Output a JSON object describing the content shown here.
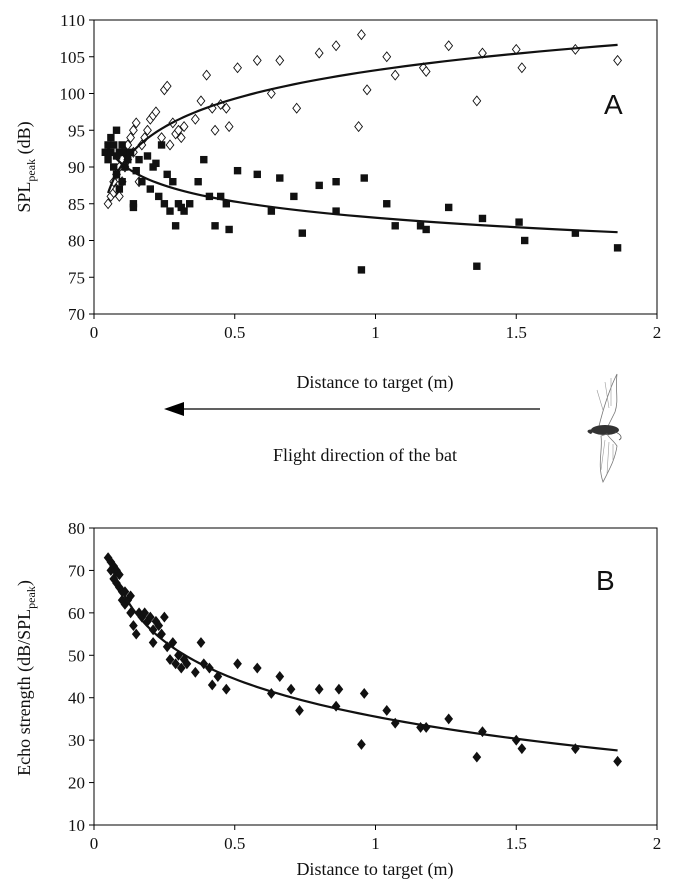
{
  "figure": {
    "flight_direction_label": "Flight direction of the bat",
    "flight_arrow_icon": "left-arrow-icon",
    "bat_icon": "bat-silhouette-icon"
  },
  "chart_data": [
    {
      "type": "scatter",
      "panel_label": "A",
      "xlabel": "Distance to target (m)",
      "ylabel_main": "SPL",
      "ylabel_sub": "peak",
      "ylabel_suffix": " (dB)",
      "xlim": [
        0,
        2
      ],
      "ylim": [
        70,
        110
      ],
      "xticks": [
        "0",
        "0.5",
        "1",
        "1.5",
        "2"
      ],
      "yticks": [
        "70",
        "75",
        "80",
        "85",
        "90",
        "95",
        "100",
        "105",
        "110"
      ],
      "grid": false,
      "series": [
        {
          "marker": "open-diamond",
          "points": [
            [
              0.05,
              85
            ],
            [
              0.06,
              86
            ],
            [
              0.07,
              86.5
            ],
            [
              0.07,
              88
            ],
            [
              0.08,
              87
            ],
            [
              0.08,
              89
            ],
            [
              0.09,
              86
            ],
            [
              0.09,
              90
            ],
            [
              0.1,
              88
            ],
            [
              0.1,
              91
            ],
            [
              0.11,
              90
            ],
            [
              0.11,
              92
            ],
            [
              0.12,
              91
            ],
            [
              0.12,
              93
            ],
            [
              0.13,
              94
            ],
            [
              0.14,
              92
            ],
            [
              0.14,
              95
            ],
            [
              0.15,
              96
            ],
            [
              0.16,
              88
            ],
            [
              0.17,
              93
            ],
            [
              0.18,
              94
            ],
            [
              0.19,
              95
            ],
            [
              0.2,
              96.5
            ],
            [
              0.21,
              97
            ],
            [
              0.22,
              97.5
            ],
            [
              0.24,
              94
            ],
            [
              0.25,
              100.5
            ],
            [
              0.26,
              101
            ],
            [
              0.27,
              93
            ],
            [
              0.28,
              96
            ],
            [
              0.29,
              94.5
            ],
            [
              0.3,
              95
            ],
            [
              0.31,
              94
            ],
            [
              0.32,
              95.5
            ],
            [
              0.36,
              96.5
            ],
            [
              0.38,
              99
            ],
            [
              0.4,
              102.5
            ],
            [
              0.42,
              98
            ],
            [
              0.43,
              95
            ],
            [
              0.45,
              98.5
            ],
            [
              0.47,
              98
            ],
            [
              0.48,
              95.5
            ],
            [
              0.51,
              103.5
            ],
            [
              0.58,
              104.5
            ],
            [
              0.63,
              100
            ],
            [
              0.66,
              104.5
            ],
            [
              0.72,
              98
            ],
            [
              0.8,
              105.5
            ],
            [
              0.86,
              106.5
            ],
            [
              0.94,
              95.5
            ],
            [
              0.95,
              108
            ],
            [
              0.97,
              100.5
            ],
            [
              1.04,
              105
            ],
            [
              1.07,
              102.5
            ],
            [
              1.17,
              103.5
            ],
            [
              1.18,
              103
            ],
            [
              1.26,
              106.5
            ],
            [
              1.36,
              99
            ],
            [
              1.38,
              105.5
            ],
            [
              1.5,
              106
            ],
            [
              1.52,
              103.5
            ],
            [
              1.71,
              106
            ],
            [
              1.86,
              104.5
            ]
          ]
        },
        {
          "marker": "filled-square",
          "points": [
            [
              0.04,
              92
            ],
            [
              0.05,
              93
            ],
            [
              0.05,
              91
            ],
            [
              0.06,
              94
            ],
            [
              0.06,
              92
            ],
            [
              0.07,
              90
            ],
            [
              0.07,
              93
            ],
            [
              0.08,
              95
            ],
            [
              0.08,
              89
            ],
            [
              0.08,
              91.5
            ],
            [
              0.09,
              87
            ],
            [
              0.09,
              92
            ],
            [
              0.1,
              88
            ],
            [
              0.1,
              93
            ],
            [
              0.11,
              90
            ],
            [
              0.11,
              92
            ],
            [
              0.12,
              91
            ],
            [
              0.13,
              92
            ],
            [
              0.14,
              85
            ],
            [
              0.14,
              84.5
            ],
            [
              0.15,
              89.5
            ],
            [
              0.16,
              91
            ],
            [
              0.17,
              88
            ],
            [
              0.19,
              91.5
            ],
            [
              0.2,
              87
            ],
            [
              0.21,
              90
            ],
            [
              0.22,
              90.5
            ],
            [
              0.23,
              86
            ],
            [
              0.24,
              93
            ],
            [
              0.25,
              85
            ],
            [
              0.26,
              89
            ],
            [
              0.27,
              84
            ],
            [
              0.28,
              88
            ],
            [
              0.29,
              82
            ],
            [
              0.3,
              85
            ],
            [
              0.31,
              84.5
            ],
            [
              0.32,
              84
            ],
            [
              0.34,
              85
            ],
            [
              0.37,
              88
            ],
            [
              0.39,
              91
            ],
            [
              0.41,
              86
            ],
            [
              0.43,
              82
            ],
            [
              0.45,
              86
            ],
            [
              0.47,
              85
            ],
            [
              0.48,
              81.5
            ],
            [
              0.51,
              89.5
            ],
            [
              0.58,
              89
            ],
            [
              0.63,
              84
            ],
            [
              0.66,
              88.5
            ],
            [
              0.71,
              86
            ],
            [
              0.74,
              81
            ],
            [
              0.8,
              87.5
            ],
            [
              0.86,
              88
            ],
            [
              0.86,
              84
            ],
            [
              0.95,
              76
            ],
            [
              0.96,
              88.5
            ],
            [
              1.04,
              85
            ],
            [
              1.07,
              82
            ],
            [
              1.16,
              82
            ],
            [
              1.18,
              81.5
            ],
            [
              1.26,
              84.5
            ],
            [
              1.36,
              76.5
            ],
            [
              1.38,
              83
            ],
            [
              1.51,
              82.5
            ],
            [
              1.53,
              80
            ],
            [
              1.71,
              81
            ],
            [
              1.86,
              79
            ]
          ]
        }
      ]
    },
    {
      "type": "scatter",
      "panel_label": "B",
      "xlabel": "Distance to target (m)",
      "ylabel_main": "Echo strength (dB/SPL",
      "ylabel_sub": "peak",
      "ylabel_suffix": ")",
      "xlim": [
        0,
        2
      ],
      "ylim": [
        10,
        80
      ],
      "xticks": [
        "0",
        "0.5",
        "1",
        "1.5",
        "2"
      ],
      "yticks": [
        "10",
        "20",
        "30",
        "40",
        "50",
        "60",
        "70",
        "80"
      ],
      "grid": false,
      "series": [
        {
          "marker": "filled-diamond",
          "points": [
            [
              0.05,
              73
            ],
            [
              0.06,
              72
            ],
            [
              0.06,
              70
            ],
            [
              0.07,
              71
            ],
            [
              0.07,
              68
            ],
            [
              0.08,
              70
            ],
            [
              0.08,
              67
            ],
            [
              0.09,
              69
            ],
            [
              0.09,
              66
            ],
            [
              0.1,
              65
            ],
            [
              0.1,
              63
            ],
            [
              0.11,
              65
            ],
            [
              0.11,
              62
            ],
            [
              0.12,
              63
            ],
            [
              0.13,
              60
            ],
            [
              0.13,
              64
            ],
            [
              0.14,
              57
            ],
            [
              0.15,
              55
            ],
            [
              0.16,
              60
            ],
            [
              0.17,
              59
            ],
            [
              0.18,
              60
            ],
            [
              0.19,
              58
            ],
            [
              0.2,
              59
            ],
            [
              0.21,
              56
            ],
            [
              0.21,
              53
            ],
            [
              0.22,
              58
            ],
            [
              0.23,
              57
            ],
            [
              0.24,
              55
            ],
            [
              0.25,
              59
            ],
            [
              0.26,
              52
            ],
            [
              0.27,
              49
            ],
            [
              0.28,
              53
            ],
            [
              0.29,
              48
            ],
            [
              0.3,
              50
            ],
            [
              0.31,
              47
            ],
            [
              0.32,
              49
            ],
            [
              0.33,
              48
            ],
            [
              0.36,
              46
            ],
            [
              0.38,
              53
            ],
            [
              0.39,
              48
            ],
            [
              0.41,
              47
            ],
            [
              0.42,
              43
            ],
            [
              0.44,
              45
            ],
            [
              0.47,
              42
            ],
            [
              0.51,
              48
            ],
            [
              0.58,
              47
            ],
            [
              0.63,
              41
            ],
            [
              0.66,
              45
            ],
            [
              0.7,
              42
            ],
            [
              0.73,
              37
            ],
            [
              0.8,
              42
            ],
            [
              0.86,
              38
            ],
            [
              0.87,
              42
            ],
            [
              0.95,
              29
            ],
            [
              0.96,
              41
            ],
            [
              1.04,
              37
            ],
            [
              1.07,
              34
            ],
            [
              1.16,
              33
            ],
            [
              1.18,
              33
            ],
            [
              1.26,
              35
            ],
            [
              1.36,
              26
            ],
            [
              1.38,
              32
            ],
            [
              1.5,
              30
            ],
            [
              1.52,
              28
            ],
            [
              1.71,
              28
            ],
            [
              1.86,
              25
            ]
          ]
        }
      ]
    }
  ]
}
